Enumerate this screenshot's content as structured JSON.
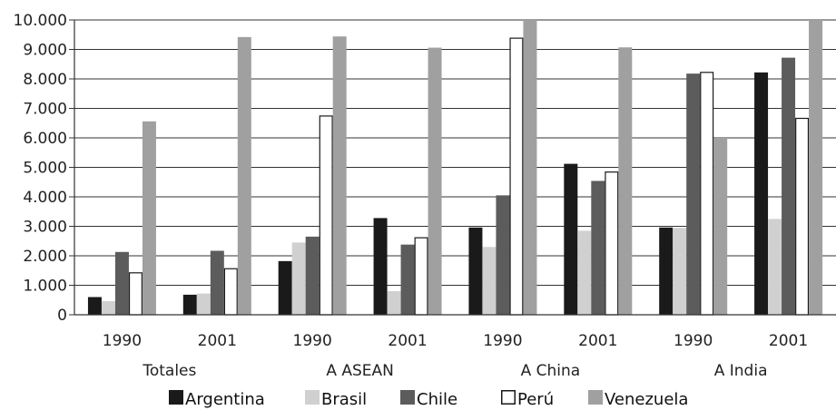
{
  "chart_data": {
    "type": "bar",
    "ylim": [
      0,
      10000
    ],
    "yticks": [
      "0",
      "1.000",
      "2.000",
      "3.000",
      "4.000",
      "5.000",
      "6.000",
      "7.000",
      "8.000",
      "9.000",
      "10.000"
    ],
    "grid": true,
    "legend_position": "bottom",
    "categories": [
      "1990",
      "2001",
      "1990",
      "2001",
      "1990",
      "2001",
      "1990",
      "2001"
    ],
    "groups": [
      "Totales",
      "A ASEAN",
      "A China",
      "A India"
    ],
    "series": [
      {
        "name": "Argentina",
        "color": "#1a1a1a",
        "stroke": "#1a1a1a",
        "values": [
          600,
          680,
          1820,
          3280,
          2960,
          5120,
          2960,
          8220
        ]
      },
      {
        "name": "Brasil",
        "color": "#d0d0d0",
        "stroke": "#d0d0d0",
        "values": [
          460,
          720,
          2450,
          800,
          2300,
          2850,
          2950,
          3250
        ]
      },
      {
        "name": "Chile",
        "color": "#5c5c5c",
        "stroke": "#5c5c5c",
        "values": [
          2130,
          2170,
          2650,
          2380,
          4050,
          4540,
          8180,
          8720
        ]
      },
      {
        "name": "Perú",
        "color": "#ffffff",
        "stroke": "#1a1a1a",
        "values": [
          1440,
          1580,
          6760,
          2630,
          9400,
          4860,
          8240,
          6680
        ]
      },
      {
        "name": "Venezuela",
        "color": "#a0a0a0",
        "stroke": "#a0a0a0",
        "values": [
          6560,
          9420,
          9440,
          9060,
          10000,
          9070,
          6000,
          10000
        ]
      }
    ]
  }
}
